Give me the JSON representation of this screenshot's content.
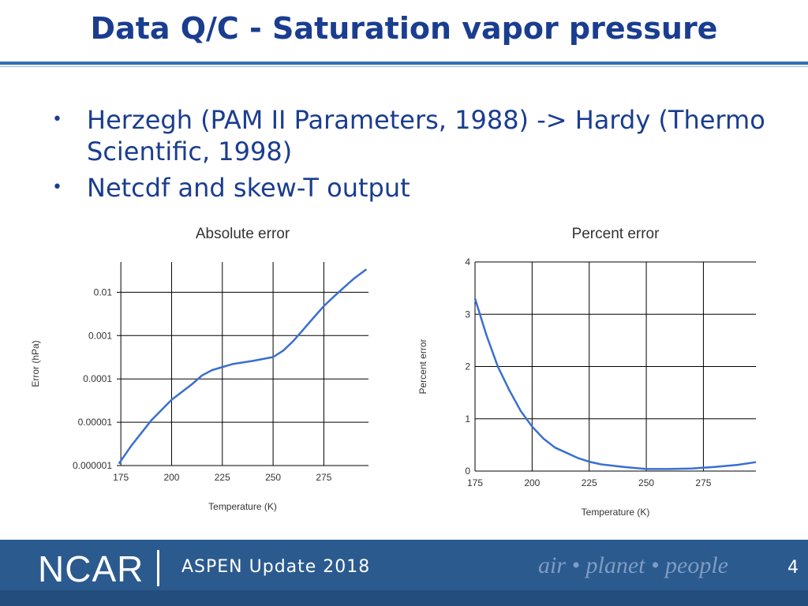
{
  "slide": {
    "title": "Data Q/C - Saturation vapor pressure",
    "bullets": [
      "Herzegh (PAM II Parameters, 1988) -> Hardy (Thermo Scientific, 1998)",
      "Netcdf and skew-T output"
    ]
  },
  "chart_data": [
    {
      "type": "line",
      "title": "Absolute error",
      "xlabel": "Temperature (K)",
      "ylabel": "Error (hPa)",
      "yscale": "log",
      "xlim": [
        173,
        297
      ],
      "ylim": [
        1e-06,
        0.05
      ],
      "xticks": [
        175,
        200,
        225,
        250,
        275
      ],
      "yticks": [
        1e-06,
        1e-05,
        0.0001,
        0.001,
        0.01
      ],
      "ytick_labels": [
        "0.000001",
        "0.00001",
        "0.0001",
        "0.001",
        "0.01"
      ],
      "grid": true,
      "color": "#3a6fd0",
      "x": [
        174,
        180,
        190,
        200,
        210,
        215,
        220,
        230,
        240,
        250,
        255,
        260,
        265,
        270,
        275,
        280,
        285,
        290,
        296
      ],
      "y": [
        1.1e-06,
        2.8e-06,
        1.1e-05,
        3.3e-05,
        7.5e-05,
        0.00012,
        0.00016,
        0.00022,
        0.00026,
        0.00032,
        0.00045,
        0.00075,
        0.0014,
        0.0026,
        0.0048,
        0.008,
        0.013,
        0.021,
        0.034
      ]
    },
    {
      "type": "line",
      "title": "Percent error",
      "xlabel": "Temperature (K)",
      "ylabel": "Percent error",
      "xlim": [
        175,
        298
      ],
      "ylim": [
        0,
        4
      ],
      "xticks": [
        175,
        200,
        225,
        250,
        275
      ],
      "yticks": [
        0,
        1,
        2,
        3,
        4
      ],
      "grid": true,
      "color": "#3a6fd0",
      "x": [
        175,
        180,
        185,
        190,
        195,
        200,
        205,
        210,
        215,
        220,
        225,
        230,
        240,
        250,
        260,
        270,
        280,
        290,
        298
      ],
      "y": [
        3.3,
        2.6,
        2.0,
        1.55,
        1.15,
        0.85,
        0.62,
        0.45,
        0.35,
        0.25,
        0.18,
        0.13,
        0.08,
        0.04,
        0.04,
        0.05,
        0.08,
        0.12,
        0.17
      ]
    }
  ],
  "footer": {
    "org": "NCAR",
    "event": "ASPEN Update 2018",
    "tagline": "air • planet • people",
    "page": "4"
  }
}
